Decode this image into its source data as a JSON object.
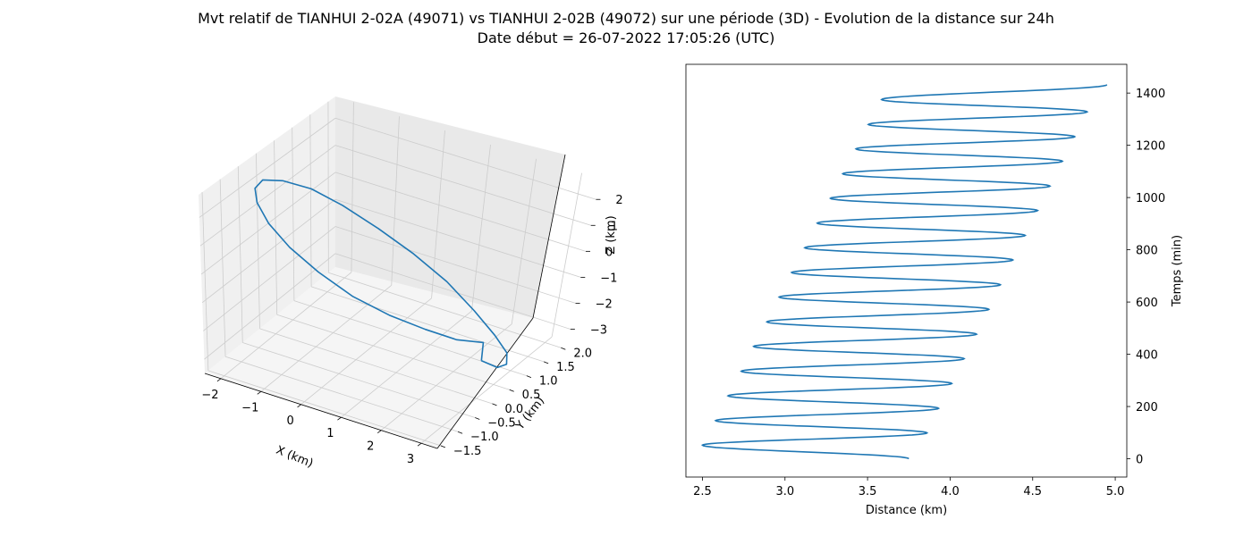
{
  "title": {
    "line1": "Mvt relatif de TIANHUI 2-02A (49071) vs TIANHUI 2-02B (49072) sur une période (3D) - Evolution de la distance sur 24h",
    "line2": "Date début = 26-07-2022 17:05:26 (UTC)"
  },
  "colors": {
    "series": "#1f77b4",
    "pane_floor": "#f5f5f5",
    "pane_wall": "#f0f0f0",
    "grid": "#cccccc"
  },
  "chart_data": [
    {
      "type": "line3d",
      "xlabel": "X (km)",
      "ylabel": "Y (km)",
      "zlabel": "Z (km)",
      "xlim": [
        -2.4,
        3.4
      ],
      "ylim": [
        -1.6,
        2.2
      ],
      "zlim": [
        -3.5,
        2.8
      ],
      "x_ticks": [
        "−2",
        "−1",
        "0",
        "1",
        "2",
        "3"
      ],
      "y_ticks": [
        "−1.5",
        "−1.0",
        "−0.5",
        "0.0",
        "0.5",
        "1.0",
        "1.5",
        "2.0"
      ],
      "z_ticks": [
        "−3",
        "−2",
        "−1",
        "0",
        "1",
        "2"
      ],
      "grid": true,
      "series": [
        {
          "x": [
            3.2,
            3.18,
            3.0,
            2.6,
            2.0,
            1.25,
            0.45,
            -0.35,
            -1.05,
            -1.65,
            -2.05,
            -2.3,
            -2.3,
            -2.05,
            -1.6,
            -1.0,
            -0.3,
            0.45,
            1.2,
            1.85,
            2.4,
            2.8,
            3.05,
            3.2
          ],
          "y": [
            -0.15,
            0.35,
            0.85,
            1.35,
            1.7,
            1.95,
            2.05,
            2.0,
            1.8,
            1.5,
            1.1,
            0.6,
            0.05,
            -0.45,
            -0.9,
            -1.25,
            -1.45,
            -1.5,
            -1.4,
            -1.15,
            -0.8,
            -0.4,
            0.05,
            -0.15
          ],
          "z": [
            -1.8,
            -2.6,
            -3.1,
            -3.4,
            -3.4,
            -3.1,
            -2.5,
            -1.8,
            -1.0,
            -0.15,
            0.65,
            1.3,
            1.85,
            2.15,
            2.3,
            2.2,
            1.9,
            1.45,
            0.85,
            0.25,
            -0.35,
            -0.95,
            -1.4,
            -1.8
          ]
        }
      ]
    },
    {
      "type": "line",
      "xlabel": "Distance (km)",
      "ylabel": "Temps (min)",
      "xlim": [
        2.4,
        5.07
      ],
      "ylim": [
        -70,
        1510
      ],
      "x_ticks": [
        2.5,
        3.0,
        3.5,
        4.0,
        4.5,
        5.0
      ],
      "y_ticks": [
        0,
        200,
        400,
        600,
        800,
        1000,
        1200,
        1400
      ],
      "grid": false,
      "series": [
        {
          "x_left_peaks": [
            2.5,
            2.58,
            2.655,
            2.735,
            2.81,
            2.89,
            2.965,
            3.04,
            3.12,
            3.195,
            3.275,
            3.35,
            3.43,
            3.505,
            3.585
          ],
          "x_right_peaks": [
            3.86,
            3.93,
            4.01,
            4.085,
            4.16,
            4.235,
            4.305,
            4.38,
            4.455,
            4.53,
            4.605,
            4.68,
            4.755,
            4.83
          ],
          "t_left_peaks": [
            52,
            146,
            241,
            335,
            430,
            524,
            619,
            713,
            808,
            902,
            997,
            1091,
            1186,
            1280,
            1375
          ],
          "t_right_peaks": [
            99,
            193,
            288,
            383,
            477,
            572,
            666,
            761,
            855,
            950,
            1044,
            1139,
            1233,
            1328
          ],
          "start": {
            "x": 3.75,
            "t": 0
          },
          "end": {
            "x": 4.95,
            "t": 1432
          }
        }
      ]
    }
  ]
}
